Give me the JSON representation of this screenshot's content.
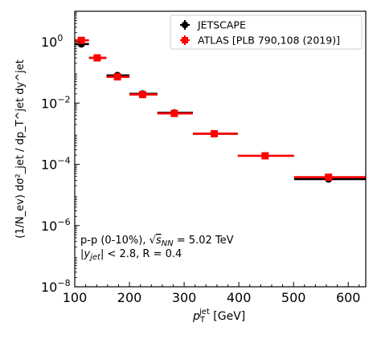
{
  "chart_data": {
    "type": "scatter",
    "x_scale": "linear",
    "y_scale": "log",
    "xlim": [
      100,
      632
    ],
    "ylim": [
      1e-08,
      10
    ],
    "grid": false,
    "legend_position": "top-right",
    "xlabel": {
      "base": "p",
      "sub": "T",
      "sup": "jet",
      "unit": " [GeV]"
    },
    "ylabel": "(1/N_ev) dσ²_jet / dp_T^jet dy^jet",
    "x_ticks": [
      {
        "value": 100,
        "label": "100"
      },
      {
        "value": 200,
        "label": "200"
      },
      {
        "value": 300,
        "label": "300"
      },
      {
        "value": 400,
        "label": "400"
      },
      {
        "value": 500,
        "label": "500"
      },
      {
        "value": 600,
        "label": "600"
      }
    ],
    "y_ticks": [
      {
        "value": 1,
        "base": "10",
        "exp": "0"
      },
      {
        "value": 0.01,
        "base": "10",
        "exp": "−2"
      },
      {
        "value": 0.0001,
        "base": "10",
        "exp": "−4"
      },
      {
        "value": 1e-06,
        "base": "10",
        "exp": "−6"
      },
      {
        "value": 1e-08,
        "base": "10",
        "exp": "−8"
      }
    ],
    "bins": [
      {
        "xlo": 100,
        "xhi": 126,
        "x": 112,
        "jetscape": 0.85,
        "atlas": 1.12
      },
      {
        "xlo": 126,
        "xhi": 158,
        "x": 141,
        "jetscape": 0.3,
        "atlas": 0.3
      },
      {
        "xlo": 158,
        "xhi": 200,
        "x": 178,
        "jetscape": 0.08,
        "atlas": 0.072
      },
      {
        "xlo": 200,
        "xhi": 251,
        "x": 224,
        "jetscape": 0.02,
        "atlas": 0.019
      },
      {
        "xlo": 251,
        "xhi": 316,
        "x": 282,
        "jetscape": 0.0048,
        "atlas": 0.0046
      },
      {
        "xlo": 316,
        "xhi": 398,
        "x": 355,
        "jetscape": 0.001,
        "atlas": 0.001
      },
      {
        "xlo": 398,
        "xhi": 501,
        "x": 448,
        "jetscape": null,
        "atlas": 0.00019
      },
      {
        "xlo": 501,
        "xhi": 632,
        "x": 564,
        "jetscape": 3.3e-05,
        "atlas": 3.8e-05
      }
    ],
    "series": [
      {
        "name": "JETSCAPE",
        "color": "#000000",
        "marker": "circle",
        "key": "jetscape"
      },
      {
        "name": "ATLAS [PLB 790,108 (2019)]",
        "color": "#ff0000",
        "marker": "square",
        "key": "atlas"
      }
    ],
    "annotation": {
      "line1_prefix": "p-p (0-10%), ",
      "sqrt_symbol": "√",
      "sqrt_var": "s",
      "sqrt_sub": "NN",
      "line1_suffix": " = 5.02 TeV",
      "line2_var": "|y",
      "line2_sub": "jet",
      "line2_suffix": "| < 2.8, R = 0.4"
    }
  }
}
